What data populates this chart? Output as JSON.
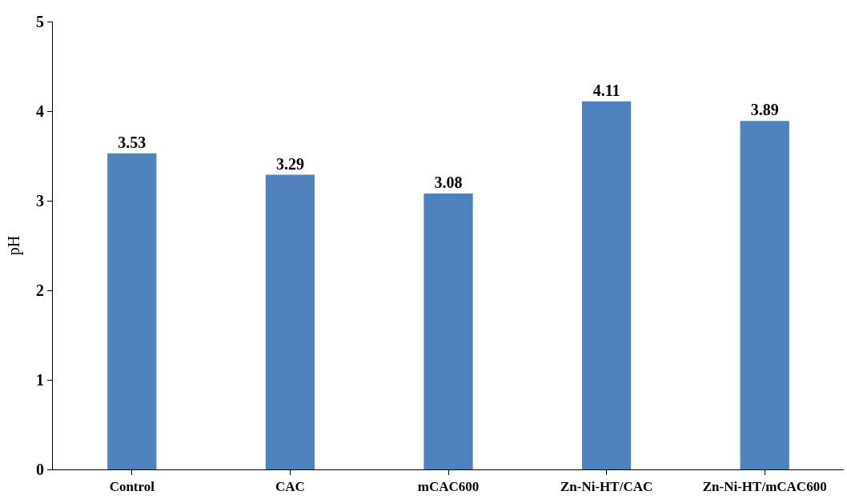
{
  "chart_data": {
    "type": "bar",
    "ylabel": "pH",
    "categories": [
      "Control",
      "CAC",
      "mCAC600",
      "Zn-Ni-HT/CAC",
      "Zn-Ni-HT/mCAC600"
    ],
    "values": [
      3.53,
      3.29,
      3.08,
      4.11,
      3.89
    ],
    "color": "#4f81bd",
    "ylim": [
      0,
      5
    ],
    "yticks": [
      0,
      1,
      2,
      3,
      4,
      5
    ],
    "data_labels": true
  }
}
